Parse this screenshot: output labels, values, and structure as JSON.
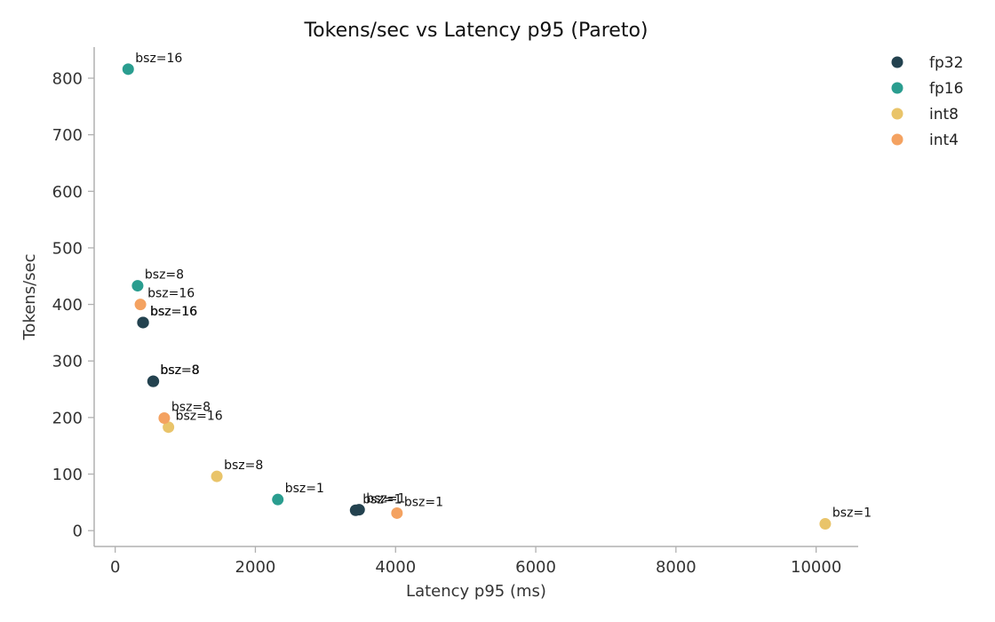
{
  "chart_data": {
    "type": "scatter",
    "title": "Tokens/sec vs Latency p95 (Pareto)",
    "xlabel": "Latency p95 (ms)",
    "ylabel": "Tokens/sec",
    "xlim": [
      -300,
      10600
    ],
    "ylim": [
      -28,
      855
    ],
    "xticks": [
      0,
      2000,
      4000,
      6000,
      8000,
      10000
    ],
    "yticks": [
      0,
      100,
      200,
      300,
      400,
      500,
      600,
      700,
      800
    ],
    "grid": false,
    "legend_position": "top-right",
    "series": [
      {
        "name": "fp32",
        "color": "#23424f",
        "points": [
          {
            "x": 3430,
            "y": 36,
            "label": "bsz=1"
          },
          {
            "x": 3480,
            "y": 37,
            "label": "bsz=1"
          },
          {
            "x": 540,
            "y": 264,
            "label": "bsz=8"
          },
          {
            "x": 545,
            "y": 264,
            "label": "bsz=8"
          },
          {
            "x": 395,
            "y": 368,
            "label": "bsz=16"
          },
          {
            "x": 400,
            "y": 368,
            "label": "bsz=16"
          }
        ]
      },
      {
        "name": "fp16",
        "color": "#2a9d8f",
        "points": [
          {
            "x": 2320,
            "y": 55,
            "label": "bsz=1"
          },
          {
            "x": 320,
            "y": 433,
            "label": "bsz=8"
          },
          {
            "x": 185,
            "y": 816,
            "label": "bsz=16"
          }
        ]
      },
      {
        "name": "int8",
        "color": "#e9c46a",
        "points": [
          {
            "x": 10130,
            "y": 12,
            "label": "bsz=1"
          },
          {
            "x": 1450,
            "y": 96,
            "label": "bsz=8"
          },
          {
            "x": 760,
            "y": 183,
            "label": "bsz=16"
          }
        ]
      },
      {
        "name": "int4",
        "color": "#f4a261",
        "points": [
          {
            "x": 4020,
            "y": 31,
            "label": "bsz=1"
          },
          {
            "x": 700,
            "y": 199,
            "label": "bsz=8"
          },
          {
            "x": 360,
            "y": 400,
            "label": "bsz=16"
          }
        ]
      }
    ]
  }
}
